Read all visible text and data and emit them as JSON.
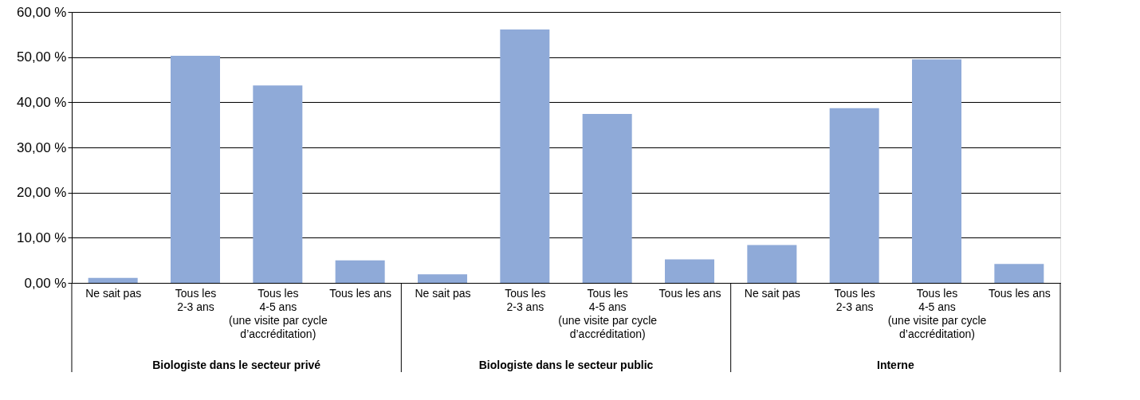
{
  "chart_data": {
    "type": "bar",
    "categories": [
      "Ne sait pas",
      "Tous les\n2-3 ans",
      "Tous les\n4-5 ans\n(une visite par cycle\nd’accréditation)",
      "Tous les ans",
      "Ne sait pas",
      "Tous les\n2-3 ans",
      "Tous les\n4-5 ans\n(une visite par cycle\nd’accréditation)",
      "Tous les ans",
      "Ne sait pas",
      "Tous les\n2-3 ans",
      "Tous les\n4-5 ans\n(une visite par cycle\nd’accréditation)",
      "Tous les ans"
    ],
    "values": [
      1.1,
      50.3,
      43.7,
      5.0,
      1.9,
      56.1,
      37.4,
      5.2,
      8.4,
      38.7,
      49.5,
      4.2
    ],
    "color": "#8faad8",
    "ylim": [
      0,
      60
    ],
    "yticks": [
      {
        "value": 0,
        "label": "0,00 %"
      },
      {
        "value": 10,
        "label": "10,00 %"
      },
      {
        "value": 20,
        "label": "20,00 %"
      },
      {
        "value": 30,
        "label": "30,00 %"
      },
      {
        "value": 40,
        "label": "40,00 %"
      },
      {
        "value": 50,
        "label": "50,00 %"
      },
      {
        "value": 60,
        "label": "60,00 %"
      }
    ],
    "grid": "y",
    "annotations": [
      "Biologiste dans le secteur privé",
      "Biologiste dans le secteur public",
      "Interne"
    ]
  }
}
